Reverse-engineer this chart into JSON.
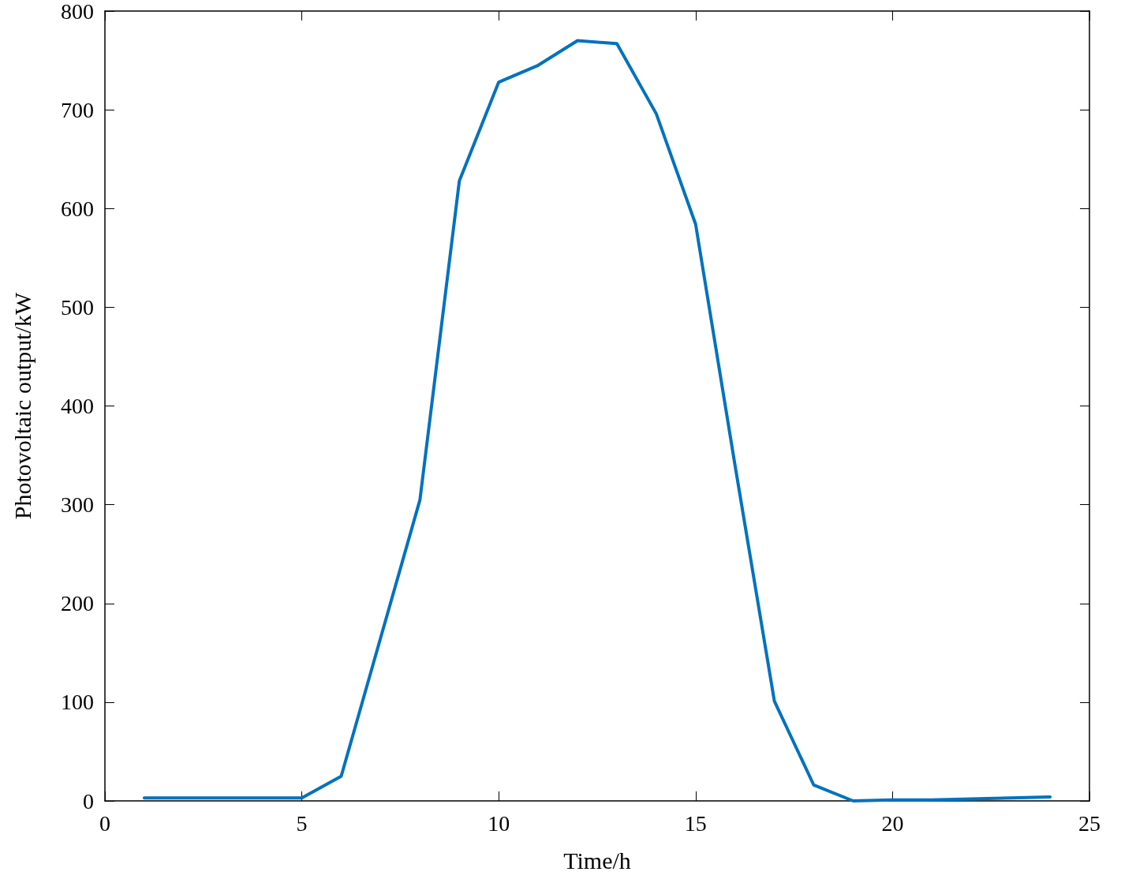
{
  "chart_data": {
    "type": "line",
    "xlabel": "Time/h",
    "ylabel": "Photovoltaic output/kW",
    "x": [
      1,
      2,
      3,
      4,
      5,
      6,
      7,
      8,
      9,
      10,
      11,
      12,
      13,
      14,
      15,
      16,
      17,
      18,
      19,
      20,
      21,
      22,
      23,
      24
    ],
    "series": [
      {
        "color": "#0072bd",
        "values": [
          3,
          3,
          3,
          3,
          3,
          25,
          165,
          305,
          628,
          728,
          745,
          770,
          767,
          696,
          584,
          340,
          101,
          16,
          0,
          1,
          1,
          2,
          3,
          4
        ]
      }
    ],
    "xlim": [
      0,
      25
    ],
    "xticks": [
      0,
      5,
      10,
      15,
      20,
      25
    ],
    "ylim": [
      0,
      800
    ],
    "yticks": [
      0,
      100,
      200,
      300,
      400,
      500,
      600,
      700,
      800
    ],
    "grid": false,
    "marker": "none",
    "line_style": "solid"
  }
}
